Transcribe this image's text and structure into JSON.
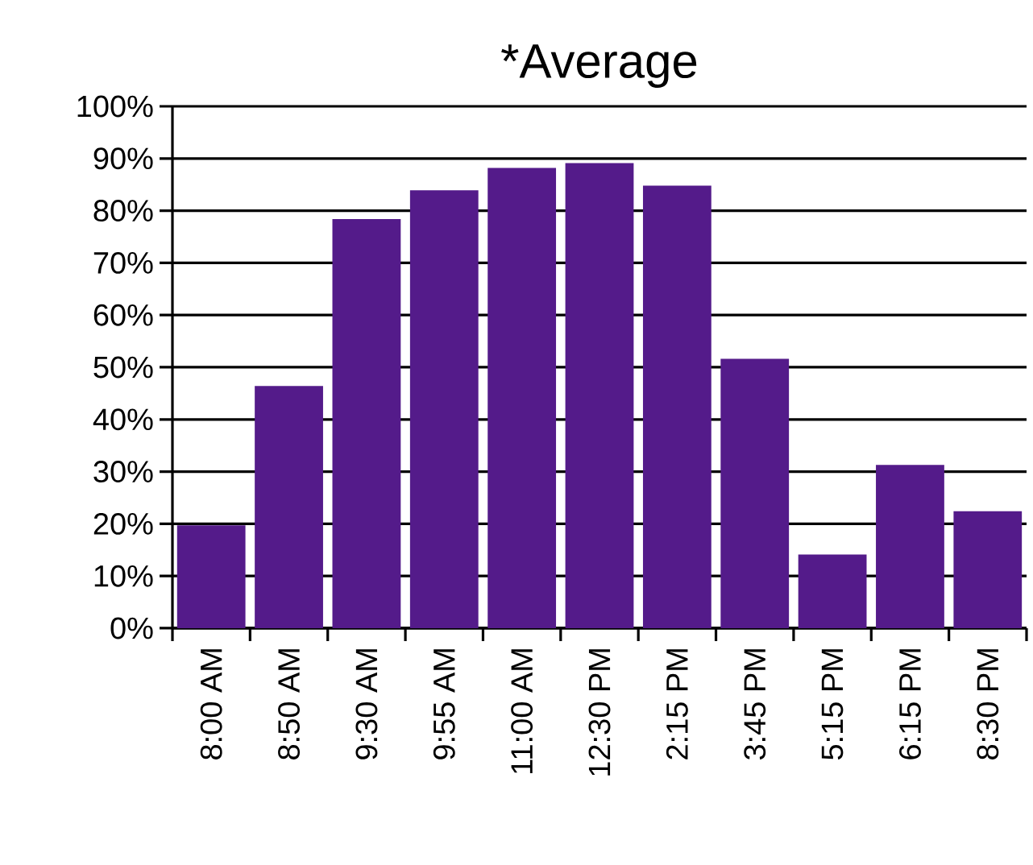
{
  "chart_data": {
    "type": "bar",
    "title": "*Average",
    "categories": [
      "8:00 AM",
      "8:50 AM",
      "9:30 AM",
      "9:55 AM",
      "11:00 AM",
      "12:30 PM",
      "2:15 PM",
      "3:45 PM",
      "5:15 PM",
      "6:15 PM",
      "8:30 PM"
    ],
    "values": [
      19.7,
      46.4,
      78.4,
      83.9,
      88.2,
      89.1,
      84.8,
      51.6,
      14.1,
      31.3,
      22.4
    ],
    "color": "#541b8a",
    "ylim": [
      0,
      100
    ],
    "yticks": [
      {
        "value": 0,
        "label": "0%"
      },
      {
        "value": 10,
        "label": "10%"
      },
      {
        "value": 20,
        "label": "20%"
      },
      {
        "value": 30,
        "label": "30%"
      },
      {
        "value": 40,
        "label": "40%"
      },
      {
        "value": 50,
        "label": "50%"
      },
      {
        "value": 60,
        "label": "60%"
      },
      {
        "value": 70,
        "label": "70%"
      },
      {
        "value": 80,
        "label": "80%"
      },
      {
        "value": 90,
        "label": "90%"
      },
      {
        "value": 100,
        "label": "100%"
      }
    ],
    "grid": "y"
  }
}
